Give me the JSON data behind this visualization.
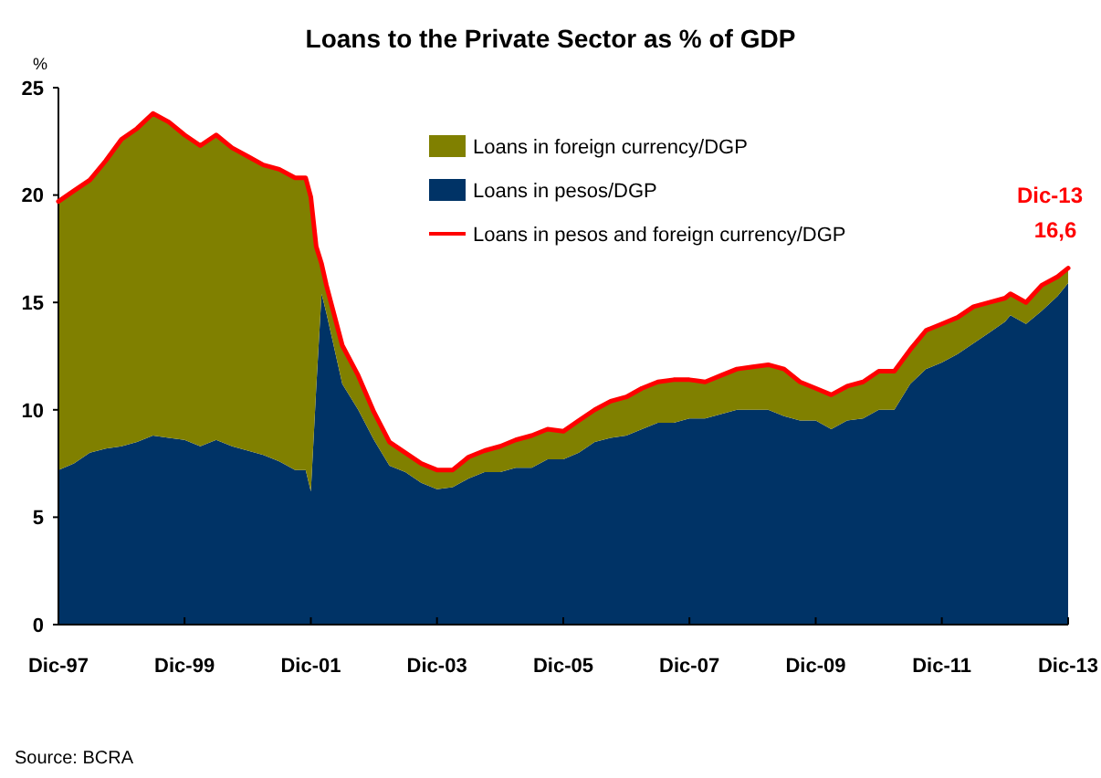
{
  "chart_data": [
    {
      "type": "area",
      "title": "Loans to the Private Sector as % of GDP",
      "ylabel": "%",
      "stacked": true,
      "legend": "top",
      "grid": false,
      "x": [
        "1997-12",
        "1998-03",
        "1998-06",
        "1998-09",
        "1998-12",
        "1999-03",
        "1999-06",
        "1999-09",
        "1999-12",
        "2000-03",
        "2000-06",
        "2000-09",
        "2000-12",
        "2001-03",
        "2001-06",
        "2001-09",
        "2001-11",
        "2001-12",
        "2002-01",
        "2002-02",
        "2002-03",
        "2002-06",
        "2002-09",
        "2002-12",
        "2003-03",
        "2003-06",
        "2003-09",
        "2003-12",
        "2004-03",
        "2004-06",
        "2004-09",
        "2004-12",
        "2005-03",
        "2005-06",
        "2005-09",
        "2005-12",
        "2006-03",
        "2006-06",
        "2006-09",
        "2006-12",
        "2007-03",
        "2007-06",
        "2007-09",
        "2007-12",
        "2008-03",
        "2008-06",
        "2008-09",
        "2008-12",
        "2009-03",
        "2009-06",
        "2009-09",
        "2009-12",
        "2010-03",
        "2010-06",
        "2010-09",
        "2010-12",
        "2011-03",
        "2011-06",
        "2011-09",
        "2011-12",
        "2012-03",
        "2012-06",
        "2012-09",
        "2012-12",
        "2013-01",
        "2013-04",
        "2013-07",
        "2013-10",
        "2013-12"
      ],
      "series": [
        {
          "name": "Loans in pesos/DGP",
          "type": "area",
          "color": "#003366",
          "values": [
            7.2,
            7.5,
            8.0,
            8.2,
            8.3,
            8.5,
            8.8,
            8.7,
            8.6,
            8.3,
            8.6,
            8.3,
            8.1,
            7.9,
            7.6,
            7.2,
            7.2,
            6.2,
            11.0,
            15.4,
            14.5,
            11.2,
            10.0,
            8.6,
            7.4,
            7.1,
            6.6,
            6.3,
            6.4,
            6.8,
            7.1,
            7.1,
            7.3,
            7.3,
            7.7,
            7.7,
            8.0,
            8.5,
            8.7,
            8.8,
            9.1,
            9.4,
            9.4,
            9.6,
            9.6,
            9.8,
            10.0,
            10.0,
            10.0,
            9.7,
            9.5,
            9.5,
            9.1,
            9.5,
            9.6,
            10.0,
            10.0,
            11.2,
            11.9,
            12.2,
            12.6,
            13.1,
            13.6,
            14.1,
            14.4,
            14.0,
            14.6,
            15.3,
            15.9
          ]
        },
        {
          "name": "Loans in foreign currency/DGP",
          "type": "area",
          "color": "#808000",
          "values": [
            12.5,
            12.7,
            12.7,
            13.4,
            14.3,
            14.6,
            15.0,
            14.7,
            14.2,
            14.0,
            14.2,
            13.9,
            13.7,
            13.5,
            13.6,
            13.6,
            13.6,
            13.7,
            6.6,
            1.4,
            1.3,
            1.8,
            1.6,
            1.3,
            1.1,
            0.9,
            0.9,
            0.9,
            0.8,
            1.0,
            1.0,
            1.2,
            1.3,
            1.5,
            1.4,
            1.3,
            1.5,
            1.5,
            1.7,
            1.8,
            1.9,
            1.9,
            2.0,
            1.8,
            1.7,
            1.8,
            1.9,
            2.0,
            2.1,
            2.2,
            1.8,
            1.5,
            1.6,
            1.6,
            1.7,
            1.8,
            1.8,
            1.6,
            1.8,
            1.8,
            1.7,
            1.7,
            1.4,
            1.1,
            1.0,
            1.0,
            1.2,
            0.9,
            0.7
          ]
        }
      ],
      "ylim": [
        0,
        25
      ],
      "yticks": [
        0,
        5,
        10,
        15,
        20,
        25
      ],
      "xlim": [
        "1997-12",
        "2013-12"
      ],
      "xticks": [
        {
          "value": "1997-12",
          "label": "Dic-97"
        },
        {
          "value": "1999-12",
          "label": "Dic-99"
        },
        {
          "value": "2001-12",
          "label": "Dic-01"
        },
        {
          "value": "2003-12",
          "label": "Dic-03"
        },
        {
          "value": "2005-12",
          "label": "Dic-05"
        },
        {
          "value": "2007-12",
          "label": "Dic-07"
        },
        {
          "value": "2009-12",
          "label": "Dic-09"
        },
        {
          "value": "2011-12",
          "label": "Dic-11"
        },
        {
          "value": "2013-12",
          "label": "Dic-13"
        }
      ],
      "annotations": [
        "Source: BCRA"
      ]
    },
    {
      "type": "line",
      "legend": "top",
      "tick_labels": false,
      "x": [
        "1997-12",
        "1998-03",
        "1998-06",
        "1998-09",
        "1998-12",
        "1999-03",
        "1999-06",
        "1999-09",
        "1999-12",
        "2000-03",
        "2000-06",
        "2000-09",
        "2000-12",
        "2001-03",
        "2001-06",
        "2001-09",
        "2001-11",
        "2001-12",
        "2002-01",
        "2002-02",
        "2002-03",
        "2002-06",
        "2002-09",
        "2002-12",
        "2003-03",
        "2003-06",
        "2003-09",
        "2003-12",
        "2004-03",
        "2004-06",
        "2004-09",
        "2004-12",
        "2005-03",
        "2005-06",
        "2005-09",
        "2005-12",
        "2006-03",
        "2006-06",
        "2006-09",
        "2006-12",
        "2007-03",
        "2007-06",
        "2007-09",
        "2007-12",
        "2008-03",
        "2008-06",
        "2008-09",
        "2008-12",
        "2009-03",
        "2009-06",
        "2009-09",
        "2009-12",
        "2010-03",
        "2010-06",
        "2010-09",
        "2010-12",
        "2011-03",
        "2011-06",
        "2011-09",
        "2011-12",
        "2012-03",
        "2012-06",
        "2012-09",
        "2012-12",
        "2013-01",
        "2013-04",
        "2013-07",
        "2013-10",
        "2013-12"
      ],
      "series": [
        {
          "name": "Loans in pesos and foreign currency/DGP",
          "color": "#ff0000",
          "values": [
            19.7,
            20.2,
            20.7,
            21.6,
            22.6,
            23.1,
            23.8,
            23.4,
            22.8,
            22.3,
            22.8,
            22.2,
            21.8,
            21.4,
            21.2,
            20.8,
            20.8,
            19.9,
            17.6,
            16.8,
            15.8,
            13.0,
            11.6,
            9.9,
            8.5,
            8.0,
            7.5,
            7.2,
            7.2,
            7.8,
            8.1,
            8.3,
            8.6,
            8.8,
            9.1,
            9.0,
            9.5,
            10.0,
            10.4,
            10.6,
            11.0,
            11.3,
            11.4,
            11.4,
            11.3,
            11.6,
            11.9,
            12.0,
            12.1,
            11.9,
            11.3,
            11.0,
            10.7,
            11.1,
            11.3,
            11.8,
            11.8,
            12.8,
            13.7,
            14.0,
            14.3,
            14.8,
            15.0,
            15.2,
            15.4,
            15.0,
            15.8,
            16.2,
            16.6
          ]
        }
      ],
      "ylim": [
        0,
        25
      ],
      "xlim": [
        "1997-12",
        "2013-12"
      ],
      "annotations": [
        {
          "text": "Dic-13\n16,6",
          "x": "2013-12",
          "y": 16.6
        }
      ]
    }
  ]
}
